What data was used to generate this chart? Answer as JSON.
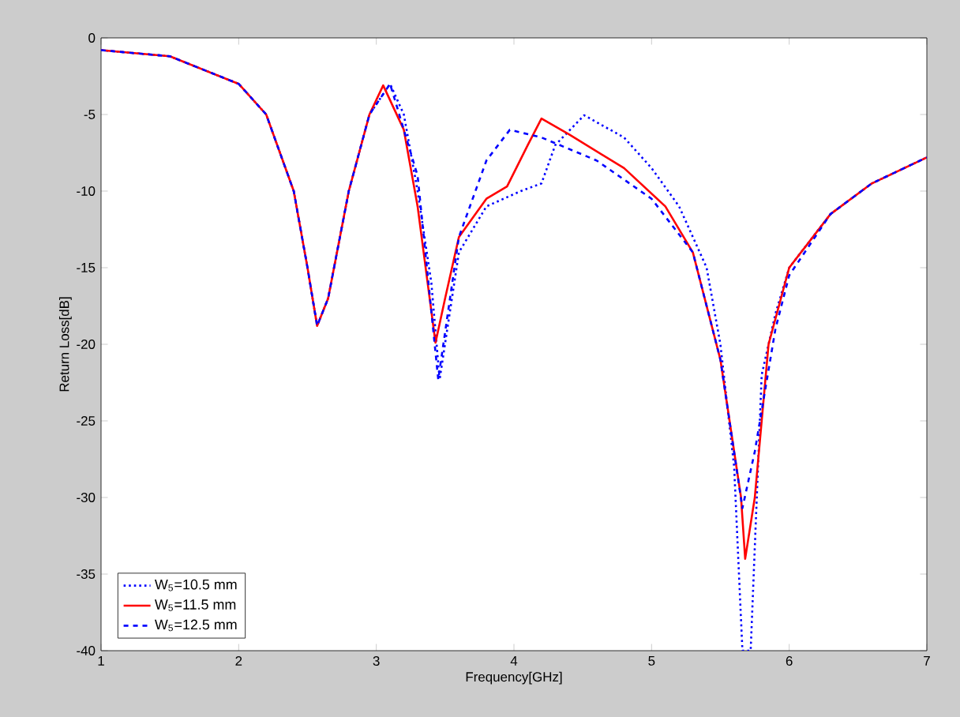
{
  "chart_data": {
    "type": "line",
    "xlabel": "Frequency[GHz]",
    "ylabel": "Return Loss[dB]",
    "xlim": [
      1,
      7
    ],
    "ylim": [
      -40,
      0
    ],
    "xticks": [
      1,
      2,
      3,
      4,
      5,
      6,
      7
    ],
    "yticks": [
      -40,
      -35,
      -30,
      -25,
      -20,
      -15,
      -10,
      -5,
      0
    ],
    "legend": "bottom left",
    "grid": false,
    "series": [
      {
        "name": "W$_{5}$=10.5 mm",
        "color": "#0000ff",
        "line_style": "dotted",
        "x": [
          1,
          1.5,
          2,
          2.2,
          2.4,
          2.5,
          2.57,
          2.65,
          2.8,
          2.95,
          3.1,
          3.2,
          3.3,
          3.4,
          3.46,
          3.6,
          3.8,
          4.05,
          4.2,
          4.3,
          4.51,
          4.8,
          5.0,
          5.2,
          5.4,
          5.5,
          5.6,
          5.66,
          5.72,
          5.8,
          5.9,
          6.0,
          6.3,
          6.6,
          7
        ],
        "values": [
          -0.8,
          -1.2,
          -3,
          -5,
          -10,
          -15,
          -18.8,
          -17,
          -10,
          -5,
          -3.0,
          -5,
          -10,
          -16,
          -22.3,
          -14,
          -11,
          -10,
          -9.5,
          -7,
          -5.05,
          -6.5,
          -8.5,
          -11,
          -15,
          -20,
          -28,
          -40,
          -40,
          -22,
          -18,
          -15,
          -11.5,
          -9.5,
          -7.8
        ]
      },
      {
        "name": "W$_{5}$=11.5 mm",
        "color": "#ff0000",
        "line_style": "solid",
        "x": [
          1,
          1.5,
          2,
          2.2,
          2.4,
          2.5,
          2.57,
          2.65,
          2.8,
          2.95,
          3.05,
          3.2,
          3.3,
          3.43,
          3.5,
          3.6,
          3.8,
          3.95,
          4.1,
          4.2,
          4.4,
          4.8,
          5.1,
          5.3,
          5.5,
          5.65,
          5.68,
          5.75,
          5.85,
          6.0,
          6.3,
          6.6,
          7
        ],
        "values": [
          -0.8,
          -1.2,
          -3,
          -5,
          -10,
          -15,
          -18.8,
          -17,
          -10,
          -5,
          -3.1,
          -6,
          -11,
          -19.9,
          -17,
          -13,
          -10.5,
          -9.7,
          -7,
          -5.26,
          -6.3,
          -8.5,
          -11,
          -14,
          -21,
          -30,
          -34,
          -30,
          -20,
          -15,
          -11.5,
          -9.5,
          -7.8
        ]
      },
      {
        "name": "W$_{5}$=12.5 mm",
        "color": "#0000ff",
        "line_style": "dashed",
        "x": [
          1,
          1.5,
          2,
          2.2,
          2.4,
          2.5,
          2.57,
          2.65,
          2.8,
          2.95,
          3.1,
          3.3,
          3.45,
          3.6,
          3.8,
          3.97,
          4.2,
          4.6,
          5.0,
          5.3,
          5.5,
          5.66,
          5.75,
          5.9,
          6.0,
          6.3,
          6.6,
          7
        ],
        "values": [
          -0.8,
          -1.2,
          -3,
          -5,
          -10,
          -15,
          -18.8,
          -17,
          -10,
          -5,
          -3.0,
          -9,
          -22.3,
          -13,
          -8,
          -6.0,
          -6.5,
          -8,
          -10.5,
          -14,
          -21,
          -30.7,
          -27,
          -19,
          -15.5,
          -11.5,
          -9.5,
          -7.8
        ]
      }
    ]
  }
}
